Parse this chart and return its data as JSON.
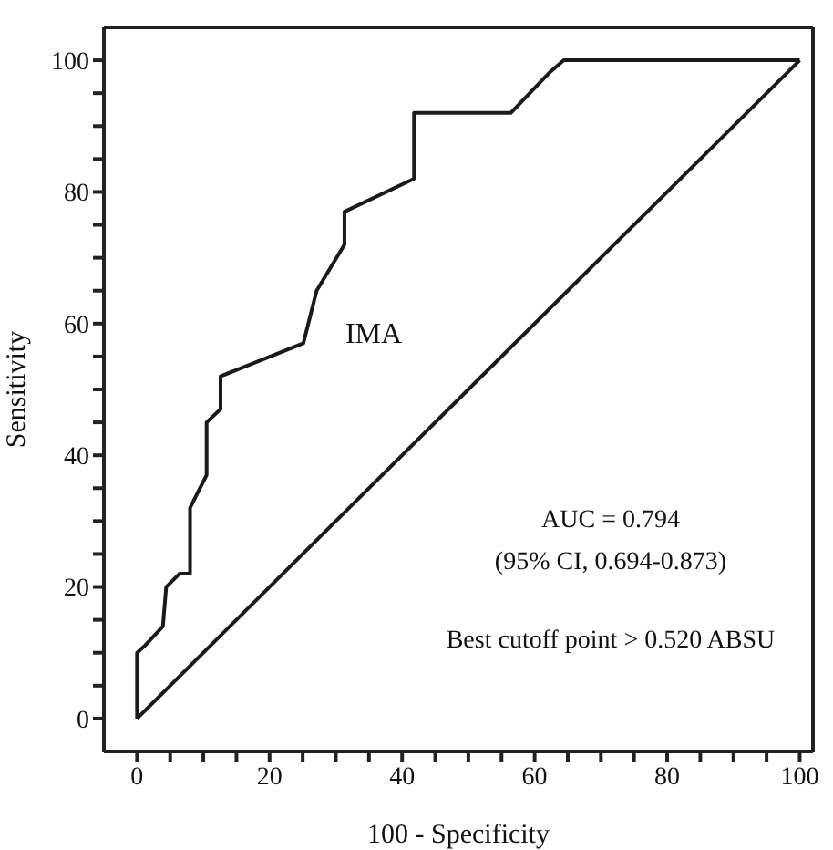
{
  "chart_data": {
    "type": "line",
    "xlabel": "100 - Specificity",
    "ylabel": "Sensitivity",
    "xlim": [
      -5,
      102
    ],
    "ylim": [
      -5,
      105
    ],
    "xticks": [
      0,
      {
        "value": 5,
        "label": null
      },
      {
        "value": 10,
        "label": null
      },
      {
        "value": 15,
        "label": null
      },
      20,
      {
        "value": 25,
        "label": null
      },
      {
        "value": 30,
        "label": null
      },
      {
        "value": 35,
        "label": null
      },
      40,
      {
        "value": 45,
        "label": null
      },
      {
        "value": 50,
        "label": null
      },
      {
        "value": 55,
        "label": null
      },
      60,
      {
        "value": 65,
        "label": null
      },
      {
        "value": 70,
        "label": null
      },
      {
        "value": 75,
        "label": null
      },
      80,
      {
        "value": 85,
        "label": null
      },
      {
        "value": 90,
        "label": null
      },
      {
        "value": 95,
        "label": null
      },
      100
    ],
    "yticks": [
      0,
      {
        "value": 5,
        "label": null
      },
      {
        "value": 10,
        "label": null
      },
      {
        "value": 15,
        "label": null
      },
      20,
      {
        "value": 25,
        "label": null
      },
      {
        "value": 30,
        "label": null
      },
      {
        "value": 35,
        "label": null
      },
      40,
      {
        "value": 45,
        "label": null
      },
      {
        "value": 50,
        "label": null
      },
      {
        "value": 55,
        "label": null
      },
      60,
      {
        "value": 65,
        "label": null
      },
      {
        "value": 70,
        "label": null
      },
      {
        "value": 75,
        "label": null
      },
      80,
      {
        "value": 85,
        "label": null
      },
      {
        "value": 90,
        "label": null
      },
      {
        "value": 95,
        "label": null
      },
      100
    ],
    "series": [
      {
        "color": "#1a1a1a",
        "x": [
          0,
          0,
          1.1,
          3.9,
          4.4,
          6.4,
          8,
          8,
          10.5,
          10.5,
          12.6,
          12.6,
          25.1,
          27.1,
          31.3,
          31.3,
          41.8,
          41.8,
          56.4,
          62.1,
          64.4,
          100
        ],
        "values": [
          0,
          10,
          11,
          14,
          20,
          22,
          22,
          32,
          37,
          45,
          47,
          52,
          57,
          65,
          72,
          77,
          82,
          92,
          92,
          98,
          100,
          100
        ]
      },
      {
        "color": "#1a1a1a",
        "x": [
          0,
          100
        ],
        "values": [
          0,
          100
        ]
      }
    ],
    "annotations": [
      "IMA",
      "AUC = 0.794",
      "(95% CI, 0.694-0.873)",
      "Best cutoff point > 0.520 ABSU"
    ],
    "grid": false,
    "marker": "none",
    "line_style": "solid"
  }
}
